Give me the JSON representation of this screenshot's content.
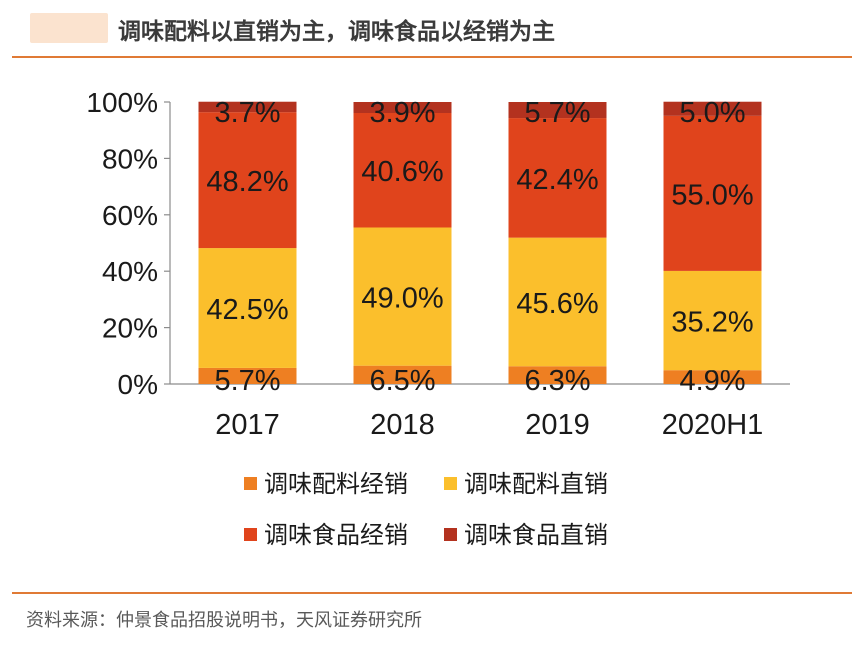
{
  "header": {
    "title": "调味配料以直销为主，调味食品以经销为主"
  },
  "footer": {
    "source": "资料来源：仲景食品招股说明书，天风证券研究所"
  },
  "chart_data": {
    "type": "bar",
    "stacked": true,
    "title": "调味配料以直销为主，调味食品以经销为主",
    "categories": [
      "2017",
      "2018",
      "2019",
      "2020H1"
    ],
    "ylim": [
      0,
      100
    ],
    "yticks": [
      "0%",
      "20%",
      "40%",
      "60%",
      "80%",
      "100%"
    ],
    "ytick_values": [
      0,
      20,
      40,
      60,
      80,
      100
    ],
    "legend_position": "bottom",
    "series": [
      {
        "name": "调味配料经销",
        "color": "#ee7f22",
        "values": [
          5.7,
          6.5,
          6.3,
          4.9
        ],
        "labels": [
          "5.7%",
          "6.5%",
          "6.3%",
          "4.9%"
        ]
      },
      {
        "name": "调味配料直销",
        "color": "#fbbf2c",
        "values": [
          42.5,
          49.0,
          45.6,
          35.2
        ],
        "labels": [
          "42.5%",
          "49.0%",
          "45.6%",
          "35.2%"
        ]
      },
      {
        "name": "调味食品经销",
        "color": "#e0441c",
        "values": [
          48.2,
          40.6,
          42.4,
          55.0
        ],
        "labels": [
          "48.2%",
          "40.6%",
          "42.4%",
          "55.0%"
        ]
      },
      {
        "name": "调味食品直销",
        "color": "#b3321f",
        "values": [
          3.7,
          3.9,
          5.7,
          5.0
        ],
        "labels": [
          "3.7%",
          "3.9%",
          "5.7%",
          "5.0%"
        ]
      }
    ]
  }
}
